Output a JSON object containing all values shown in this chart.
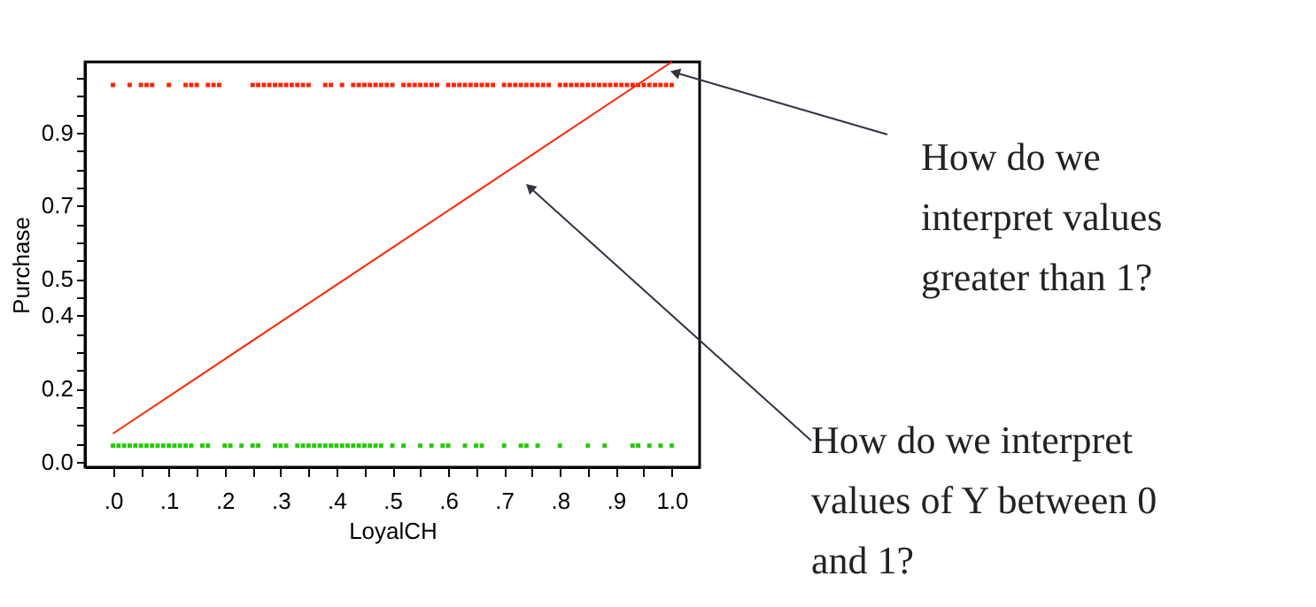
{
  "chart_data": {
    "type": "scatter",
    "xlabel": "LoyalCH",
    "ylabel": "Purchase",
    "xlim": [
      -0.05,
      1.05
    ],
    "ylim": [
      -0.015,
      1.093
    ],
    "xticks": [
      {
        "value": 0,
        "label": ".0"
      },
      {
        "value": 0.05,
        "label": null
      },
      {
        "value": 0.1,
        "label": ".1"
      },
      {
        "value": 0.15,
        "label": null
      },
      {
        "value": 0.2,
        "label": ".2"
      },
      {
        "value": 0.25,
        "label": null
      },
      {
        "value": 0.3,
        "label": ".3"
      },
      {
        "value": 0.35,
        "label": null
      },
      {
        "value": 0.4,
        "label": ".4"
      },
      {
        "value": 0.45,
        "label": null
      },
      {
        "value": 0.5,
        "label": ".5"
      },
      {
        "value": 0.55,
        "label": null
      },
      {
        "value": 0.6,
        "label": ".6"
      },
      {
        "value": 0.65,
        "label": null
      },
      {
        "value": 0.7,
        "label": ".7"
      },
      {
        "value": 0.75,
        "label": null
      },
      {
        "value": 0.8,
        "label": ".8"
      },
      {
        "value": 0.85,
        "label": null
      },
      {
        "value": 0.9,
        "label": ".9"
      },
      {
        "value": 0.95,
        "label": null
      },
      {
        "value": 1.0,
        "label": "1.0"
      }
    ],
    "yticks": [
      {
        "value": 0,
        "label": "0.0"
      },
      {
        "value": 0.05,
        "label": null
      },
      {
        "value": 0.1,
        "label": null
      },
      {
        "value": 0.15,
        "label": null
      },
      {
        "value": 0.2,
        "label": "0.2"
      },
      {
        "value": 0.25,
        "label": null
      },
      {
        "value": 0.3,
        "label": null
      },
      {
        "value": 0.35,
        "label": null
      },
      {
        "value": 0.4,
        "label": "0.4"
      },
      {
        "value": 0.45,
        "label": null
      },
      {
        "value": 0.5,
        "label": "0.5"
      },
      {
        "value": 0.55,
        "label": null
      },
      {
        "value": 0.6,
        "label": null
      },
      {
        "value": 0.65,
        "label": null
      },
      {
        "value": 0.7,
        "label": "0.7"
      },
      {
        "value": 0.75,
        "label": null
      },
      {
        "value": 0.8,
        "label": null
      },
      {
        "value": 0.85,
        "label": null
      },
      {
        "value": 0.9,
        "label": "0.9"
      },
      {
        "value": 0.95,
        "label": null
      },
      {
        "value": 1.0,
        "label": null
      },
      {
        "value": 1.05,
        "label": null
      }
    ],
    "grid": false,
    "series": [
      {
        "type": "scatter",
        "marker": "square",
        "color": "#ff2200",
        "x": [
          0,
          0.03,
          0.05,
          0.06,
          0.07,
          0.1,
          0.13,
          0.14,
          0.15,
          0.17,
          0.18,
          0.19,
          0.25,
          0.26,
          0.27,
          0.28,
          0.29,
          0.3,
          0.31,
          0.32,
          0.33,
          0.34,
          0.35,
          0.38,
          0.39,
          0.41,
          0.43,
          0.44,
          0.45,
          0.46,
          0.47,
          0.48,
          0.49,
          0.5,
          0.52,
          0.53,
          0.54,
          0.55,
          0.56,
          0.57,
          0.58,
          0.6,
          0.61,
          0.62,
          0.63,
          0.64,
          0.65,
          0.66,
          0.67,
          0.68,
          0.7,
          0.71,
          0.72,
          0.73,
          0.74,
          0.75,
          0.76,
          0.77,
          0.78,
          0.8,
          0.81,
          0.82,
          0.83,
          0.84,
          0.85,
          0.86,
          0.87,
          0.88,
          0.89,
          0.9,
          0.91,
          0.92,
          0.93,
          0.94,
          0.95,
          0.96,
          0.97,
          0.98,
          0.99,
          1.0
        ],
        "values": [
          1.03,
          1.03,
          1.03,
          1.03,
          1.03,
          1.03,
          1.03,
          1.03,
          1.03,
          1.03,
          1.03,
          1.03,
          1.03,
          1.03,
          1.03,
          1.03,
          1.03,
          1.03,
          1.03,
          1.03,
          1.03,
          1.03,
          1.03,
          1.03,
          1.03,
          1.03,
          1.03,
          1.03,
          1.03,
          1.03,
          1.03,
          1.03,
          1.03,
          1.03,
          1.03,
          1.03,
          1.03,
          1.03,
          1.03,
          1.03,
          1.03,
          1.03,
          1.03,
          1.03,
          1.03,
          1.03,
          1.03,
          1.03,
          1.03,
          1.03,
          1.03,
          1.03,
          1.03,
          1.03,
          1.03,
          1.03,
          1.03,
          1.03,
          1.03,
          1.03,
          1.03,
          1.03,
          1.03,
          1.03,
          1.03,
          1.03,
          1.03,
          1.03,
          1.03,
          1.03,
          1.03,
          1.03,
          1.03,
          1.03,
          1.03,
          1.03,
          1.03,
          1.03,
          1.03,
          1.03
        ]
      },
      {
        "type": "scatter",
        "marker": "square",
        "color": "#22cc00",
        "x": [
          0,
          0.01,
          0.02,
          0.03,
          0.04,
          0.05,
          0.06,
          0.07,
          0.08,
          0.09,
          0.1,
          0.11,
          0.12,
          0.13,
          0.14,
          0.16,
          0.17,
          0.2,
          0.21,
          0.23,
          0.25,
          0.26,
          0.29,
          0.3,
          0.31,
          0.33,
          0.34,
          0.35,
          0.36,
          0.37,
          0.38,
          0.39,
          0.4,
          0.41,
          0.42,
          0.43,
          0.44,
          0.45,
          0.46,
          0.47,
          0.48,
          0.5,
          0.52,
          0.55,
          0.57,
          0.59,
          0.6,
          0.63,
          0.65,
          0.66,
          0.7,
          0.73,
          0.74,
          0.76,
          0.8,
          0.85,
          0.88,
          0.93,
          0.94,
          0.96,
          0.98,
          1.0
        ],
        "values": [
          0.044,
          0.044,
          0.044,
          0.044,
          0.044,
          0.044,
          0.044,
          0.044,
          0.044,
          0.044,
          0.044,
          0.044,
          0.044,
          0.044,
          0.044,
          0.044,
          0.044,
          0.044,
          0.044,
          0.044,
          0.044,
          0.044,
          0.044,
          0.044,
          0.044,
          0.044,
          0.044,
          0.044,
          0.044,
          0.044,
          0.044,
          0.044,
          0.044,
          0.044,
          0.044,
          0.044,
          0.044,
          0.044,
          0.044,
          0.044,
          0.044,
          0.044,
          0.044,
          0.044,
          0.044,
          0.044,
          0.044,
          0.044,
          0.044,
          0.044,
          0.044,
          0.044,
          0.044,
          0.044,
          0.044,
          0.044,
          0.044,
          0.044,
          0.044,
          0.044,
          0.044,
          0.044
        ]
      },
      {
        "type": "line",
        "color": "#ff2200",
        "x": [
          0,
          1.0
        ],
        "values": [
          0.077,
          1.093
        ]
      }
    ],
    "annotations": [
      {
        "text": "How do we\ninterpret values\ngreater than 1?",
        "x": 1.006,
        "y": 1.064
      },
      {
        "text": "How do we interpret\nvalues of Y between 0\nand 1?",
        "x": 0.746,
        "y": 0.75
      }
    ]
  }
}
